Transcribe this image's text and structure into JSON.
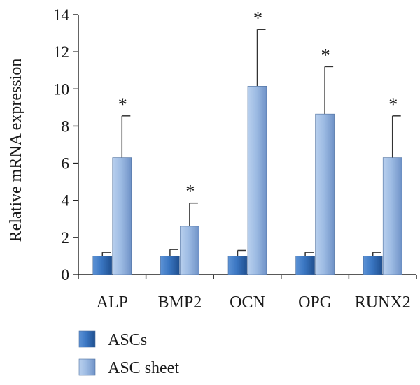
{
  "chart_data": {
    "type": "bar",
    "title": "",
    "xlabel": "",
    "ylabel": "Relative mRNA expression",
    "ylim": [
      0,
      14
    ],
    "yticks": [
      0,
      2,
      4,
      6,
      8,
      10,
      12,
      14
    ],
    "grid": false,
    "legend_position": "bottom-left",
    "categories": [
      "ALP",
      "BMP2",
      "OCN",
      "OPG",
      "RUNX2"
    ],
    "series": [
      {
        "name": "ASCs",
        "color": "#2f6bb5",
        "values": [
          1.0,
          1.0,
          1.0,
          1.0,
          1.0
        ],
        "errors": [
          0.2,
          0.35,
          0.3,
          0.2,
          0.2
        ],
        "annotations": [
          "",
          "",
          "",
          "",
          ""
        ]
      },
      {
        "name": "ASC sheet",
        "color": "#8fb0dc",
        "values": [
          6.3,
          2.6,
          10.15,
          8.65,
          6.3
        ],
        "errors": [
          2.25,
          1.25,
          3.05,
          2.55,
          2.25
        ],
        "annotations": [
          "*",
          "*",
          "*",
          "*",
          "*"
        ]
      }
    ]
  }
}
